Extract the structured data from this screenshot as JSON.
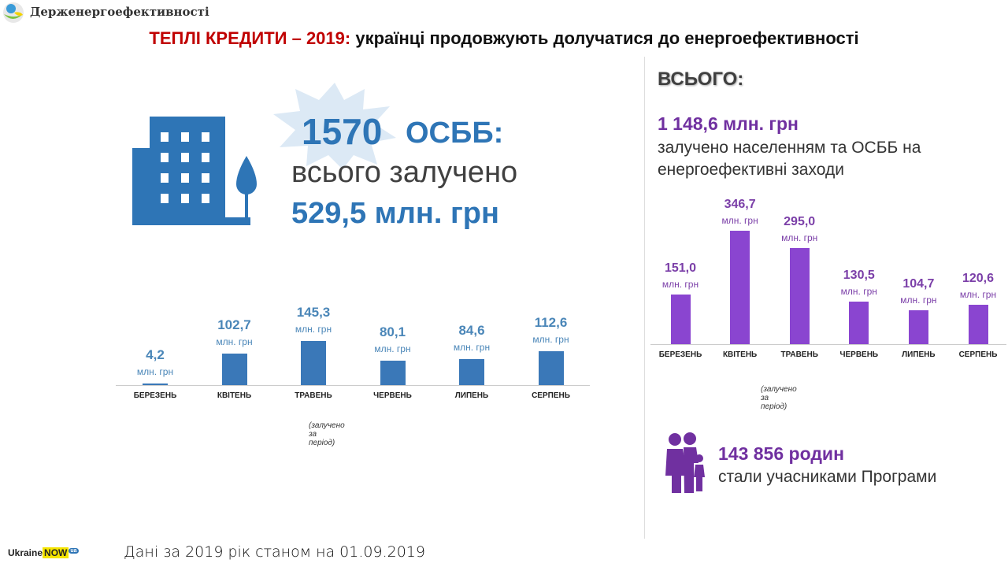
{
  "header": {
    "org": "Держенергоефективності",
    "title_red": "ТЕПЛІ КРЕДИТИ – 2019:",
    "title_rest": " українці продовжують долучатися до енергоефективності"
  },
  "osbb": {
    "count": "1570",
    "label": "ОСББ:",
    "line2": "всього залучено",
    "amount": "529,5 млн. грн"
  },
  "summary": {
    "heading": "ВСЬОГО:",
    "amount": "1 148,6 млн. грн",
    "desc": "залучено населенням та ОСББ на енергоефективні заходи"
  },
  "families": {
    "count": "143 856 родин",
    "desc": "стали учасниками Програми"
  },
  "footer": {
    "date": "Дані за 2019 рік станом на 01.09.2019",
    "brand1": "Ukraine",
    "brand2": "NOW",
    "brand_badge": "ua"
  },
  "colors": {
    "left": "#3a78b8",
    "right": "#8a45d0",
    "left_text": "#4a86b8",
    "right_text": "#7b3fa8"
  },
  "chart_data": [
    {
      "type": "bar",
      "title": "ОСББ",
      "categories": [
        "БЕРЕЗЕНЬ",
        "КВІТЕНЬ",
        "ТРАВЕНЬ",
        "ЧЕРВЕНЬ",
        "ЛИПЕНЬ",
        "СЕРПЕНЬ"
      ],
      "values": [
        4.2,
        102.7,
        145.3,
        80.1,
        84.6,
        112.6
      ],
      "labels": [
        "4,2",
        "102,7",
        "145,3",
        "80,1",
        "84,6",
        "112,6"
      ],
      "unit": "млн. грн",
      "note": "(залучено за період)"
    },
    {
      "type": "bar",
      "title": "ВСЬОГО",
      "categories": [
        "БЕРЕЗЕНЬ",
        "КВІТЕНЬ",
        "ТРАВЕНЬ",
        "ЧЕРВЕНЬ",
        "ЛИПЕНЬ",
        "СЕРПЕНЬ"
      ],
      "values": [
        151.0,
        346.7,
        295.0,
        130.5,
        104.7,
        120.6
      ],
      "labels": [
        "151,0",
        "346,7",
        "295,0",
        "130,5",
        "104,7",
        "120,6"
      ],
      "unit": "млн. грн",
      "note": "(залучено за період)"
    }
  ]
}
